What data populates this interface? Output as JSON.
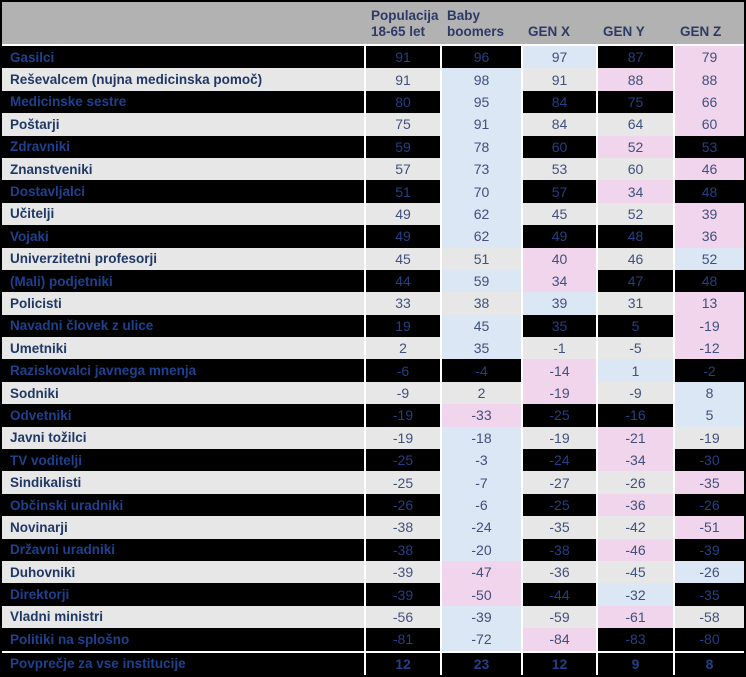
{
  "table": {
    "col_headers": [
      {
        "lines": [
          "Populacija",
          "18-65 let"
        ]
      },
      {
        "lines": [
          "Baby",
          "boomers"
        ]
      },
      {
        "lines": [
          "GEN X"
        ]
      },
      {
        "lines": [
          "GEN Y"
        ]
      },
      {
        "lines": [
          "GEN Z"
        ]
      }
    ],
    "rows": [
      {
        "label": "Gasilci",
        "values": [
          91,
          96,
          97,
          87,
          79
        ],
        "highlights": [
          "none",
          "none",
          "blue",
          "none",
          "pink"
        ]
      },
      {
        "label": "Reševalcem (nujna medicinska pomoč)",
        "values": [
          91,
          98,
          91,
          88,
          88
        ],
        "highlights": [
          "none",
          "blue",
          "none",
          "pink",
          "pink"
        ]
      },
      {
        "label": "Medicinske sestre",
        "values": [
          80,
          95,
          84,
          75,
          66
        ],
        "highlights": [
          "none",
          "blue",
          "none",
          "none",
          "pink"
        ]
      },
      {
        "label": "Poštarji",
        "values": [
          75,
          91,
          84,
          64,
          60
        ],
        "highlights": [
          "none",
          "blue",
          "none",
          "none",
          "pink"
        ]
      },
      {
        "label": "Zdravniki",
        "values": [
          59,
          78,
          60,
          52,
          53
        ],
        "highlights": [
          "none",
          "blue",
          "none",
          "pink",
          "none"
        ]
      },
      {
        "label": "Znanstveniki",
        "values": [
          57,
          73,
          53,
          60,
          46
        ],
        "highlights": [
          "none",
          "blue",
          "none",
          "none",
          "pink"
        ]
      },
      {
        "label": "Dostavljalci",
        "values": [
          51,
          70,
          57,
          34,
          48
        ],
        "highlights": [
          "none",
          "blue",
          "none",
          "pink",
          "none"
        ]
      },
      {
        "label": "Učitelji",
        "values": [
          49,
          62,
          45,
          52,
          39
        ],
        "highlights": [
          "none",
          "blue",
          "none",
          "none",
          "pink"
        ]
      },
      {
        "label": "Vojaki",
        "values": [
          49,
          62,
          49,
          48,
          36
        ],
        "highlights": [
          "none",
          "blue",
          "none",
          "none",
          "pink"
        ]
      },
      {
        "label": "Univerzitetni profesorji",
        "values": [
          45,
          51,
          40,
          46,
          52
        ],
        "highlights": [
          "none",
          "none",
          "pink",
          "none",
          "blue"
        ]
      },
      {
        "label": "(Mali) podjetniki",
        "values": [
          44,
          59,
          34,
          47,
          48
        ],
        "highlights": [
          "none",
          "blue",
          "pink",
          "none",
          "none"
        ]
      },
      {
        "label": "Policisti",
        "values": [
          33,
          38,
          39,
          31,
          13
        ],
        "highlights": [
          "none",
          "none",
          "blue",
          "none",
          "pink"
        ]
      },
      {
        "label": "Navadni človek z ulice",
        "values": [
          19,
          45,
          35,
          5,
          -19
        ],
        "highlights": [
          "none",
          "blue",
          "none",
          "none",
          "pink"
        ]
      },
      {
        "label": "Umetniki",
        "values": [
          2,
          35,
          -1,
          -5,
          -12
        ],
        "highlights": [
          "none",
          "blue",
          "none",
          "none",
          "pink"
        ]
      },
      {
        "label": "Raziskovalci javnega mnenja",
        "values": [
          -6,
          -4,
          -14,
          1,
          -2
        ],
        "highlights": [
          "none",
          "none",
          "pink",
          "blue",
          "none"
        ]
      },
      {
        "label": "Sodniki",
        "values": [
          -9,
          2,
          -19,
          -9,
          8
        ],
        "highlights": [
          "none",
          "none",
          "pink",
          "none",
          "blue"
        ]
      },
      {
        "label": "Odvetniki",
        "values": [
          -19,
          -33,
          -25,
          -16,
          5
        ],
        "highlights": [
          "none",
          "pink",
          "none",
          "none",
          "blue"
        ]
      },
      {
        "label": "Javni tožilci",
        "values": [
          -19,
          -18,
          -19,
          -21,
          -19
        ],
        "highlights": [
          "none",
          "blue",
          "none",
          "pink",
          "none"
        ]
      },
      {
        "label": "TV voditelji",
        "values": [
          -25,
          -3,
          -24,
          -34,
          -30
        ],
        "highlights": [
          "none",
          "blue",
          "none",
          "pink",
          "none"
        ]
      },
      {
        "label": "Sindikalisti",
        "values": [
          -25,
          -7,
          -27,
          -26,
          -35
        ],
        "highlights": [
          "none",
          "blue",
          "none",
          "none",
          "pink"
        ]
      },
      {
        "label": "Občinski uradniki",
        "values": [
          -26,
          -6,
          -25,
          -36,
          -26
        ],
        "highlights": [
          "none",
          "blue",
          "none",
          "pink",
          "none"
        ]
      },
      {
        "label": "Novinarji",
        "values": [
          -38,
          -24,
          -35,
          -42,
          -51
        ],
        "highlights": [
          "none",
          "blue",
          "none",
          "none",
          "pink"
        ]
      },
      {
        "label": "Državni uradniki",
        "values": [
          -38,
          -20,
          -38,
          -46,
          -39
        ],
        "highlights": [
          "none",
          "blue",
          "none",
          "pink",
          "none"
        ]
      },
      {
        "label": "Duhovniki",
        "values": [
          -39,
          -47,
          -36,
          -45,
          -26
        ],
        "highlights": [
          "none",
          "pink",
          "none",
          "none",
          "blue"
        ]
      },
      {
        "label": "Direktorji",
        "values": [
          -39,
          -50,
          -44,
          -32,
          -35
        ],
        "highlights": [
          "none",
          "pink",
          "none",
          "blue",
          "none"
        ]
      },
      {
        "label": "Vladni ministri",
        "values": [
          -56,
          -39,
          -59,
          -61,
          -58
        ],
        "highlights": [
          "none",
          "blue",
          "none",
          "pink",
          "none"
        ]
      },
      {
        "label": "Politiki na splošno",
        "values": [
          -81,
          -72,
          -84,
          -83,
          -80
        ],
        "highlights": [
          "none",
          "blue",
          "pink",
          "none",
          "none"
        ]
      },
      {
        "label": "Povprečje za vse institucije",
        "values": [
          12,
          23,
          12,
          9,
          8
        ],
        "highlights": [
          "none",
          "none",
          "none",
          "none",
          "none"
        ],
        "total": true
      }
    ]
  },
  "colors": {
    "header_bg": "#b2b2b2",
    "header_text": "#2e3a66",
    "dark_row": "#000000",
    "light_row": "#e7e7e7",
    "blue_highlight": "#dbe7f4",
    "pink_highlight": "#f1d5ec",
    "label_on_light": "#1f3864",
    "label_on_dark": "#1e418f",
    "number_on_light": "#41507c",
    "number_on_dark": "#233f85"
  }
}
